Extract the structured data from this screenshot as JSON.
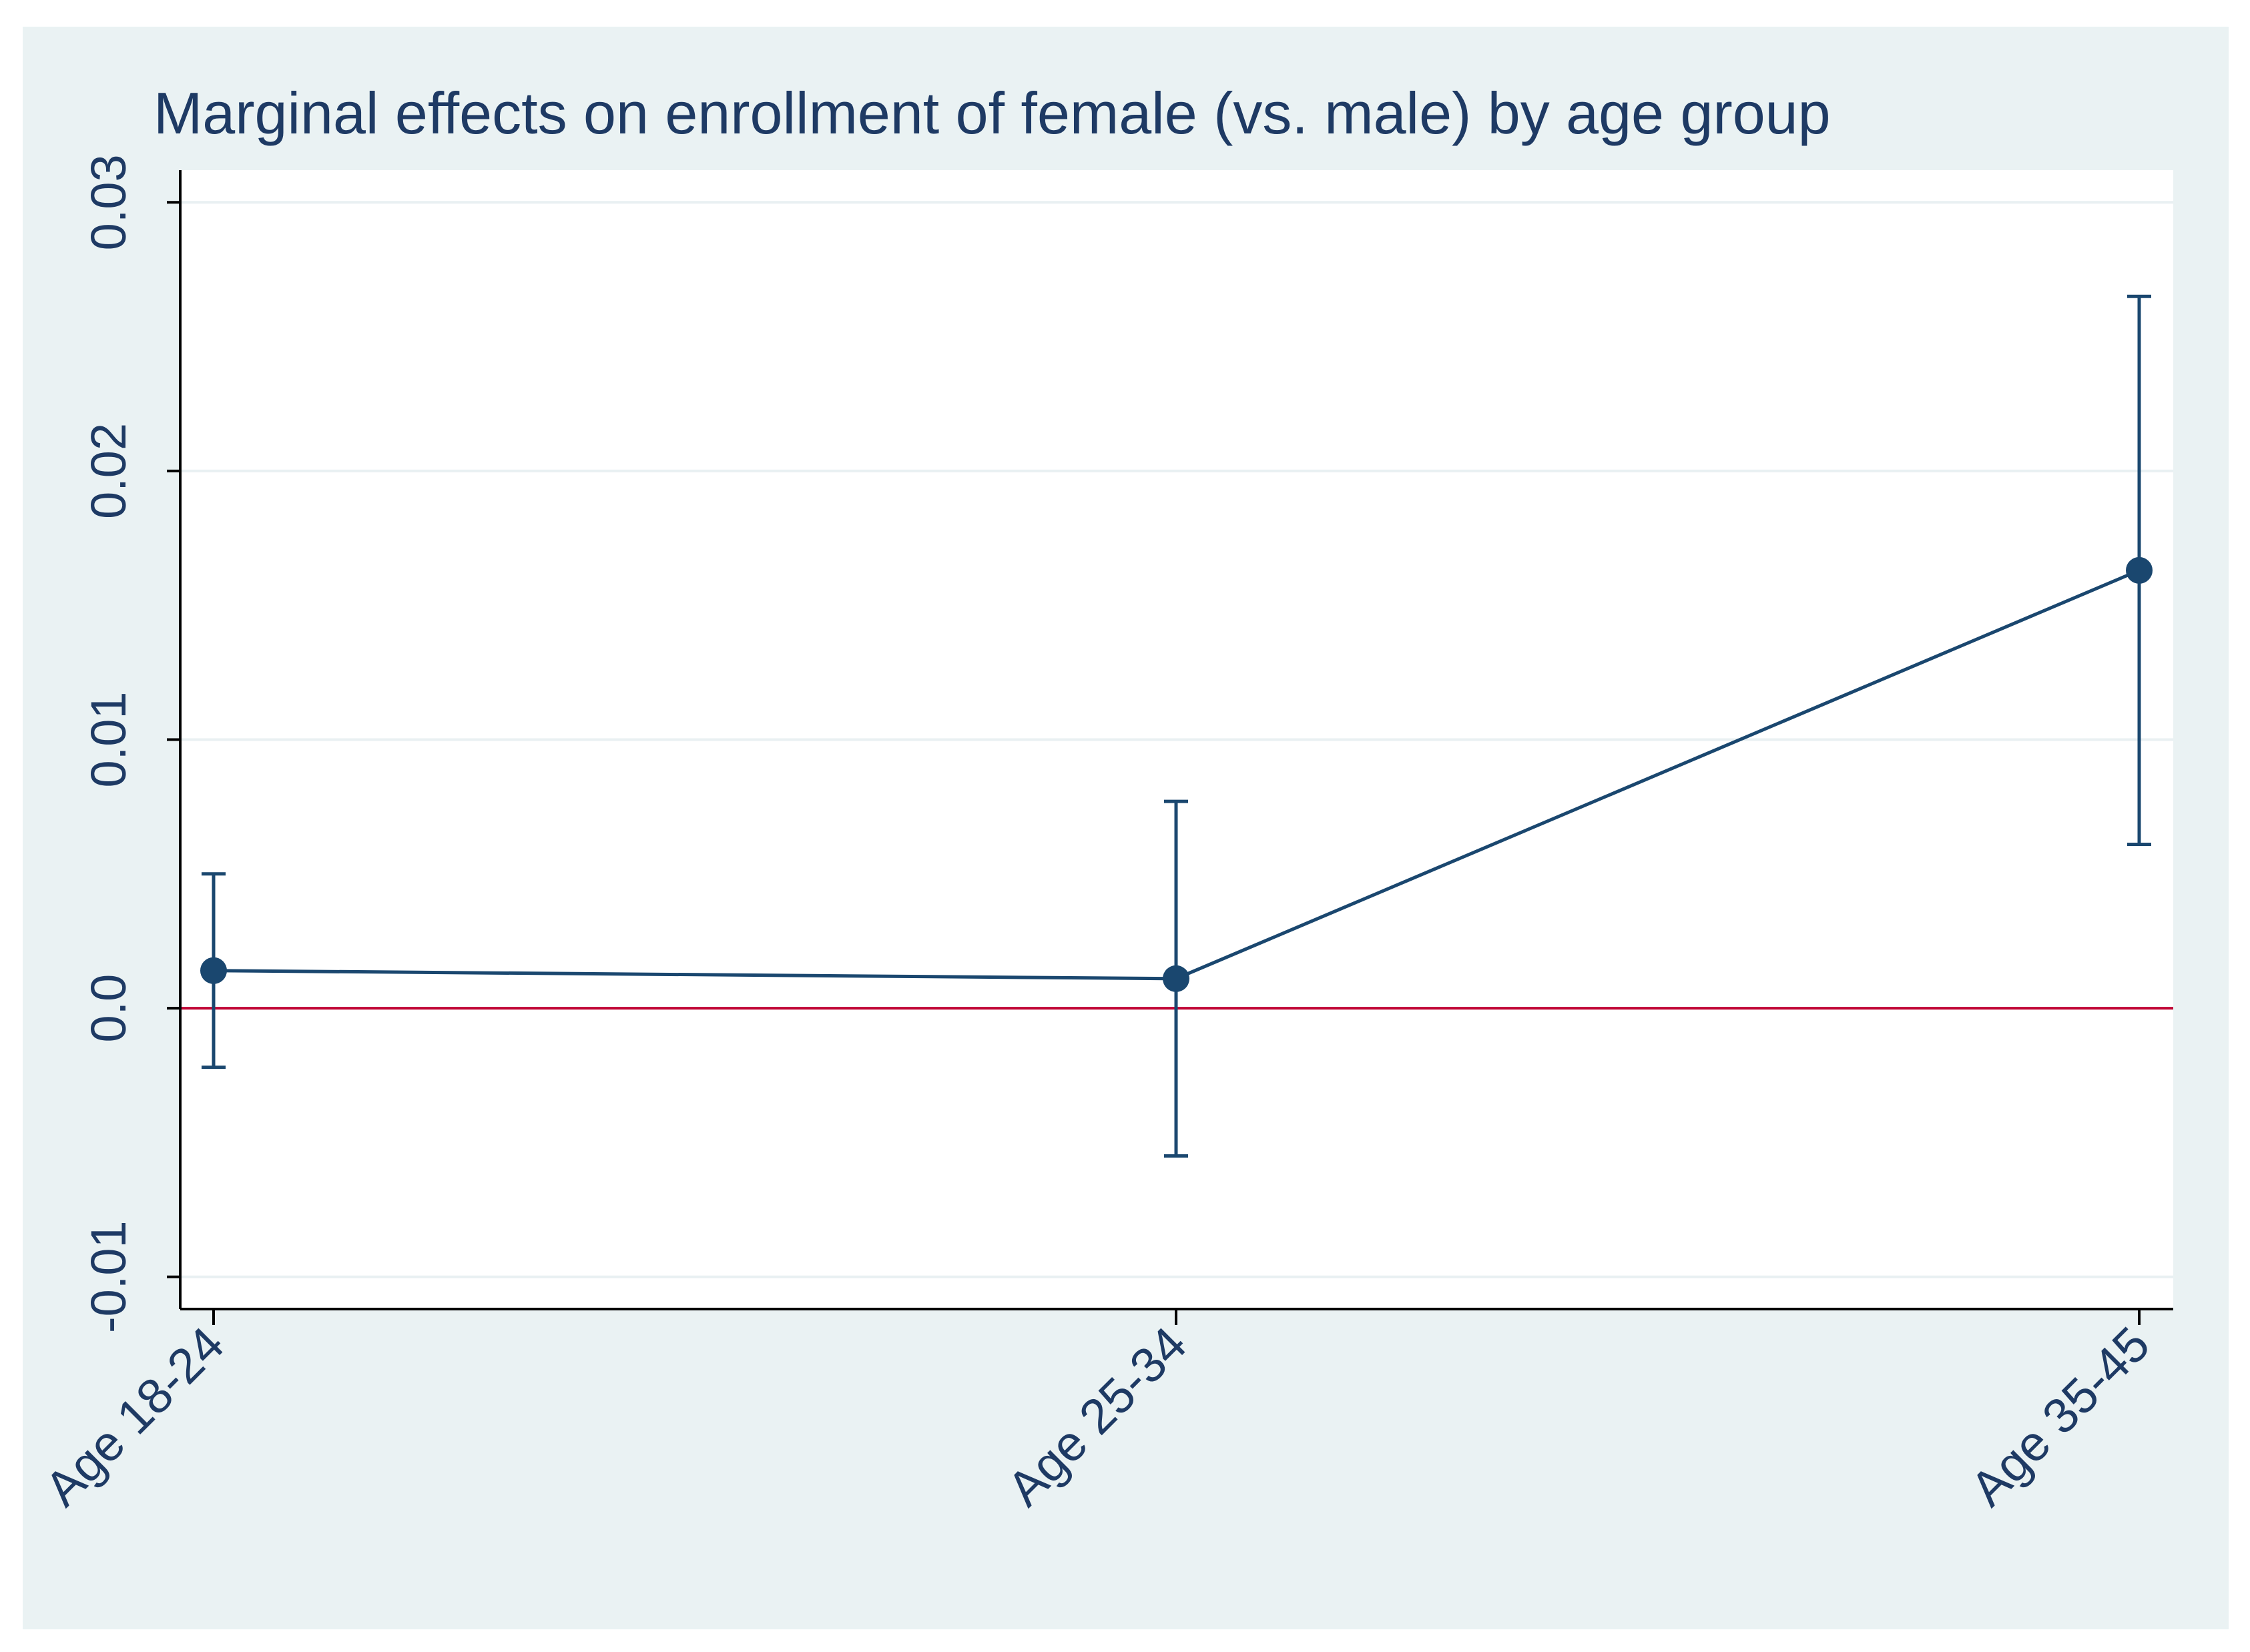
{
  "chart_data": {
    "type": "line",
    "title": "Marginal effects on enrollment of female (vs. male) by age group",
    "xlabel": "",
    "ylabel": "",
    "categories": [
      "Age 18-24",
      "Age 25-34",
      "Age 35-45"
    ],
    "series": [
      {
        "name": "Marginal effect",
        "values": [
          0.0014,
          0.0011,
          0.0163
        ],
        "ci_lower": [
          -0.0022,
          -0.0055,
          0.0061
        ],
        "ci_upper": [
          0.005,
          0.0077,
          0.0265
        ]
      }
    ],
    "reference_line": {
      "y": 0.0
    },
    "ylim": [
      -0.0112,
      0.0312
    ],
    "yticks": [
      -0.01,
      0.0,
      0.01,
      0.02,
      0.03
    ],
    "ytick_labels": [
      "-0.01",
      "0.0",
      "0.01",
      "0.02",
      "0.03"
    ],
    "grid": true,
    "colors": {
      "outer_background": "#eaf2f3",
      "plot_background": "#ffffff",
      "grid": "#e9f0f2",
      "series": "#1a476f",
      "reference_line": "#c10534",
      "text": "#1e3a64",
      "axis": "#000000"
    }
  }
}
